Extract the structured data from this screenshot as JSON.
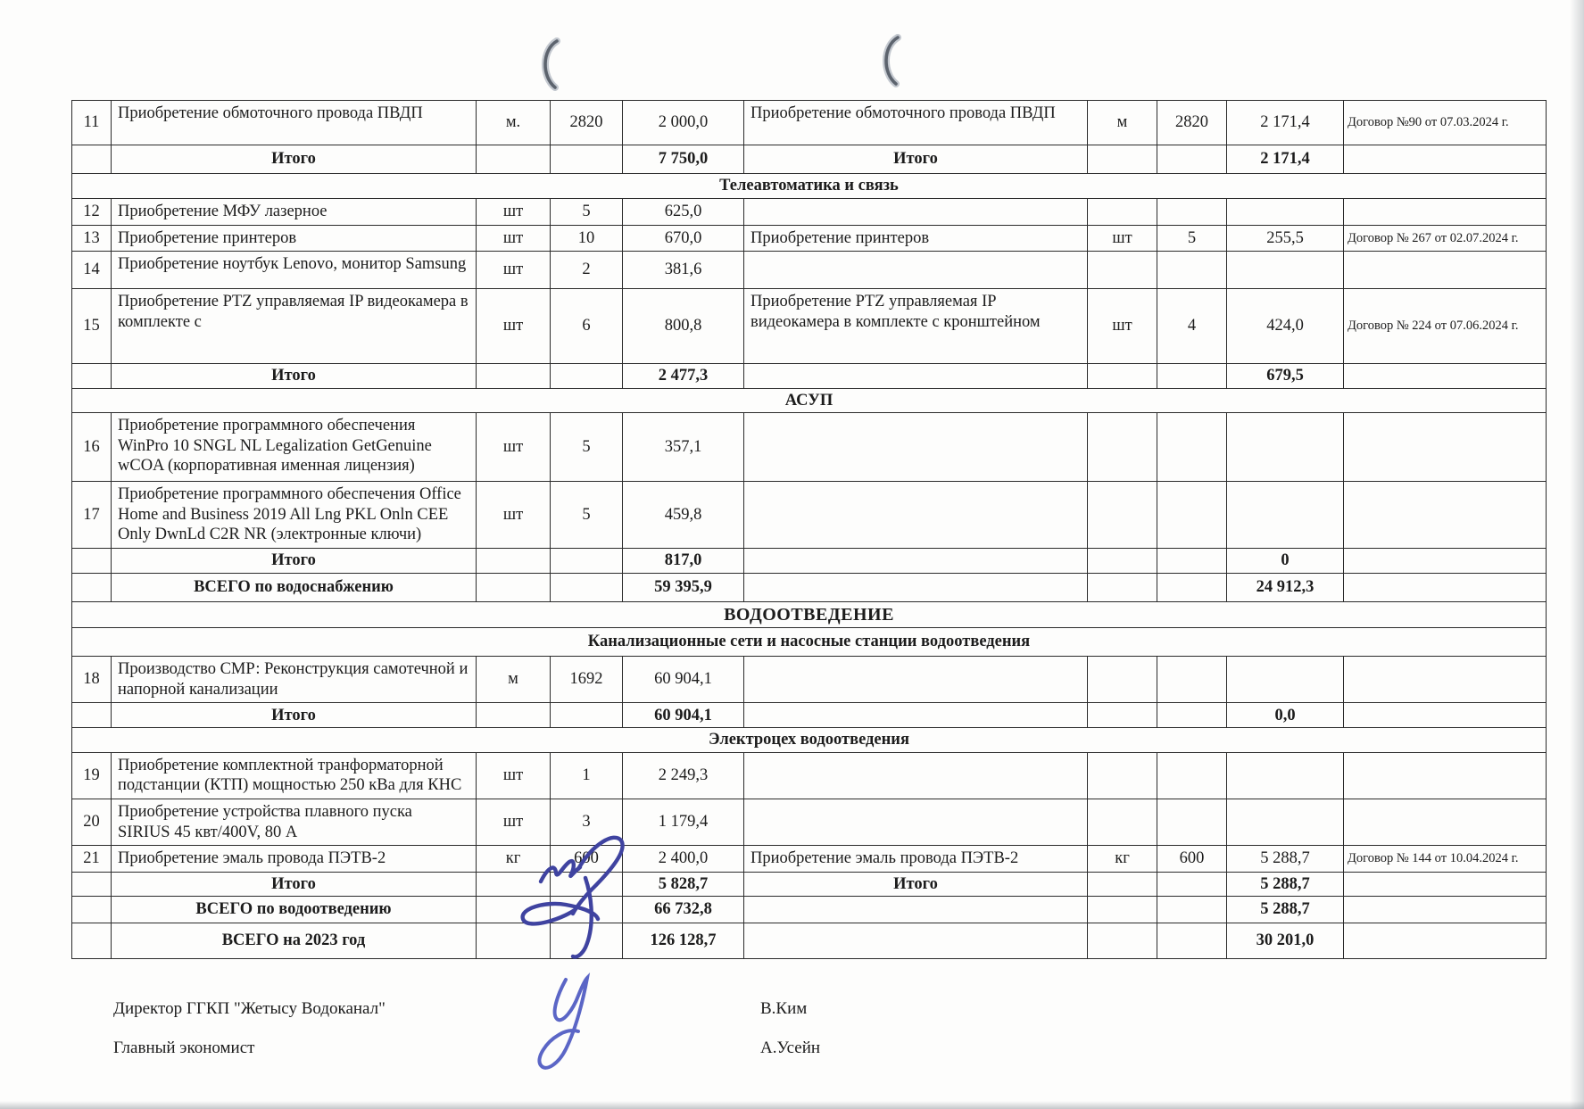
{
  "document": {
    "table": {
      "rows": [
        {
          "type": "item",
          "num": "11",
          "desc": "Приобретение обмоточного провода ПВДП",
          "unit": "м.",
          "qty": "2820",
          "amount": "2 000,0",
          "desc2": "Приобретение обмоточного провода ПВДП",
          "unit2": "м",
          "qty2": "2820",
          "amount2": "2 171,4",
          "contract": "Договор №90 от 07.03.2024 г."
        },
        {
          "type": "subtotal",
          "label": "Итого",
          "amount": "7 750,0",
          "label2": "Итого",
          "amount2": "2 171,4"
        },
        {
          "type": "section",
          "label": "Телеавтоматика и связь"
        },
        {
          "type": "item",
          "num": "12",
          "desc": "Приобретение МФУ лазерное",
          "unit": "шт",
          "qty": "5",
          "amount": "625,0"
        },
        {
          "type": "item",
          "num": "13",
          "desc": "Приобретение принтеров",
          "unit": "шт",
          "qty": "10",
          "amount": "670,0",
          "desc2": "Приобретение принтеров",
          "unit2": "шт",
          "qty2": "5",
          "amount2": "255,5",
          "contract": "Договор № 267 от 02.07.2024 г."
        },
        {
          "type": "item",
          "num": "14",
          "desc": "Приобретение ноутбук Lenovo, монитор Samsung",
          "unit": "шт",
          "qty": "2",
          "amount": "381,6"
        },
        {
          "type": "item",
          "num": "15",
          "desc": "Приобретение PTZ управляемая IP видеокамера в комплекте с",
          "unit": "шт",
          "qty": "6",
          "amount": "800,8",
          "desc2": "Приобретение PTZ управляемая IP видеокамера в комплекте с  кронштейном",
          "unit2": "шт",
          "qty2": "4",
          "amount2": "424,0",
          "contract": "Договор № 224 от 07.06.2024 г."
        },
        {
          "type": "subtotal",
          "label": "Итого",
          "amount": "2 477,3",
          "amount2": "679,5"
        },
        {
          "type": "section",
          "label": "АСУП"
        },
        {
          "type": "item",
          "num": "16",
          "desc": "Приобретение программного обеспечения WinPro 10 SNGL NL Legalization GetGenuine wCOA (корпоративная именная лицензия)",
          "unit": "шт",
          "qty": "5",
          "amount": "357,1"
        },
        {
          "type": "item",
          "num": "17",
          "desc": "Приобретение программного обеспечения Office Home and Business 2019 All Lng PKL Onln CEE Only DwnLd C2R NR   (электронные ключи)",
          "unit": "шт",
          "qty": "5",
          "amount": "459,8"
        },
        {
          "type": "subtotal",
          "label": "Итого",
          "amount": "817,0",
          "amount2": "0"
        },
        {
          "type": "total",
          "label": "ВСЕГО по водоснабжению",
          "amount": "59 395,9",
          "amount2": "24 912,3"
        },
        {
          "type": "section",
          "label": "ВОДООТВЕДЕНИЕ",
          "big": true
        },
        {
          "type": "section",
          "label": "Канализационные сети и  насосные станции водоотведения"
        },
        {
          "type": "item",
          "num": "18",
          "desc": "Производство СМР: Реконструкция самотечной и напорной канализации",
          "unit": "м",
          "qty": "1692",
          "amount": "60 904,1"
        },
        {
          "type": "subtotal",
          "label": "Итого",
          "amount": "60 904,1",
          "amount2": "0,0"
        },
        {
          "type": "section",
          "label": "Электроцех водоотведения"
        },
        {
          "type": "item",
          "num": "19",
          "desc": "Приобретение комплектной транформаторной подстанции (КТП) мощностью 250 кВа для КНС",
          "unit": "шт",
          "qty": "1",
          "amount": "2 249,3"
        },
        {
          "type": "item",
          "num": "20",
          "desc": "Приобретение устройства плавного пуска SIRIUS 45 квт/400V, 80 А",
          "unit": "шт",
          "qty": "3",
          "amount": "1 179,4"
        },
        {
          "type": "item",
          "num": "21",
          "desc": "Приобретение эмаль провода ПЭТВ-2",
          "unit": "кг",
          "qty": "600",
          "amount": "2 400,0",
          "desc2": "Приобретение эмаль провода ПЭТВ-2",
          "unit2": "кг",
          "qty2": "600",
          "amount2": "5 288,7",
          "contract": "Договор № 144 от 10.04.2024 г."
        },
        {
          "type": "subtotal",
          "label": "Итого",
          "amount": "5 828,7",
          "label2": "Итого",
          "amount2": "5 288,7"
        },
        {
          "type": "total",
          "label": "ВСЕГО по водоотведению",
          "amount": "66 732,8",
          "amount2": "5 288,7"
        },
        {
          "type": "total",
          "label": "ВСЕГО на 2023 год",
          "amount": "126 128,7",
          "amount2": "30 201,0"
        }
      ]
    },
    "signatures": {
      "director_label": "Директор ГГКП \"Жетысу Водоканал\"",
      "director_name": "В.Ким",
      "economist_label": "Главный экономист",
      "economist_name": "А.Усейн"
    },
    "icons": {
      "binder_ring": "binder-ring-shadow",
      "signature_ink_color": "#3f43a0",
      "signature_ink_color2": "#5b66c6"
    }
  }
}
